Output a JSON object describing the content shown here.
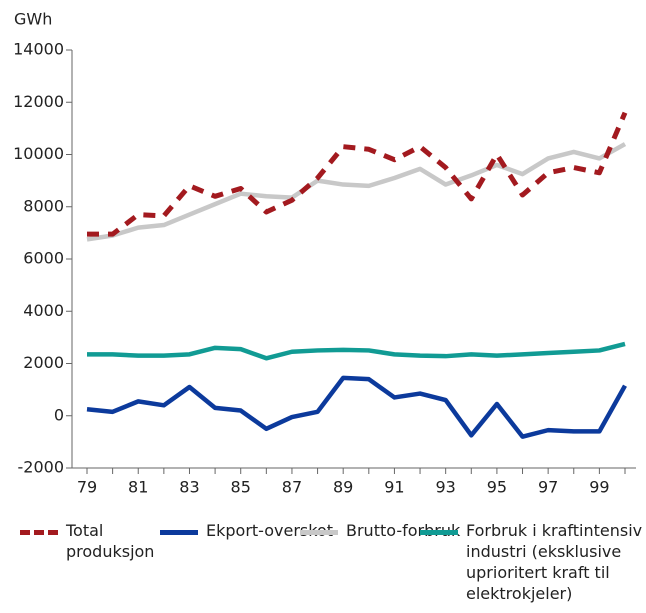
{
  "chart_data": {
    "type": "line",
    "y_label": "GWh",
    "categories": [
      "79",
      null,
      "81",
      null,
      "83",
      null,
      "85",
      null,
      "87",
      null,
      "89",
      null,
      "91",
      null,
      "93",
      null,
      "95",
      null,
      "97",
      null,
      "99",
      null
    ],
    "series": [
      {
        "name": "Total produksjon",
        "color": "#a31a1f",
        "dashed": true,
        "values": [
          6950,
          6950,
          7700,
          7650,
          8800,
          8400,
          8700,
          7800,
          8250,
          9100,
          10300,
          10200,
          9800,
          10300,
          9500,
          8300,
          10000,
          8450,
          9300,
          9500,
          9300,
          11600
        ]
      },
      {
        "name": "Ekport-overskot",
        "color": "#0c3a9c",
        "dashed": false,
        "values": [
          250,
          150,
          550,
          400,
          1100,
          300,
          200,
          -500,
          -50,
          150,
          1450,
          1400,
          700,
          850,
          600,
          -750,
          450,
          -800,
          -550,
          -600,
          -600,
          1150
        ]
      },
      {
        "name": "Brutto-forbruk",
        "color": "#c8c8c8",
        "dashed": false,
        "values": [
          6750,
          6900,
          7200,
          7300,
          7700,
          8100,
          8500,
          8400,
          8350,
          9000,
          8850,
          8800,
          9100,
          9450,
          8850,
          9200,
          9600,
          9250,
          9850,
          10100,
          9850,
          10400
        ]
      },
      {
        "name": "Forbruk i kraftintensiv industri (eksklusive uprioritert kraft til elektrokjeler)",
        "color": "#119b94",
        "dashed": false,
        "values": [
          2350,
          2350,
          2300,
          2300,
          2350,
          2600,
          2550,
          2200,
          2450,
          2500,
          2520,
          2500,
          2350,
          2300,
          2280,
          2350,
          2300,
          2350,
          2400,
          2450,
          2500,
          2750
        ]
      }
    ],
    "ylim": [
      -2000,
      14000
    ],
    "yticks": [
      -2000,
      0,
      2000,
      4000,
      6000,
      8000,
      10000,
      12000,
      14000
    ],
    "grid": false
  }
}
